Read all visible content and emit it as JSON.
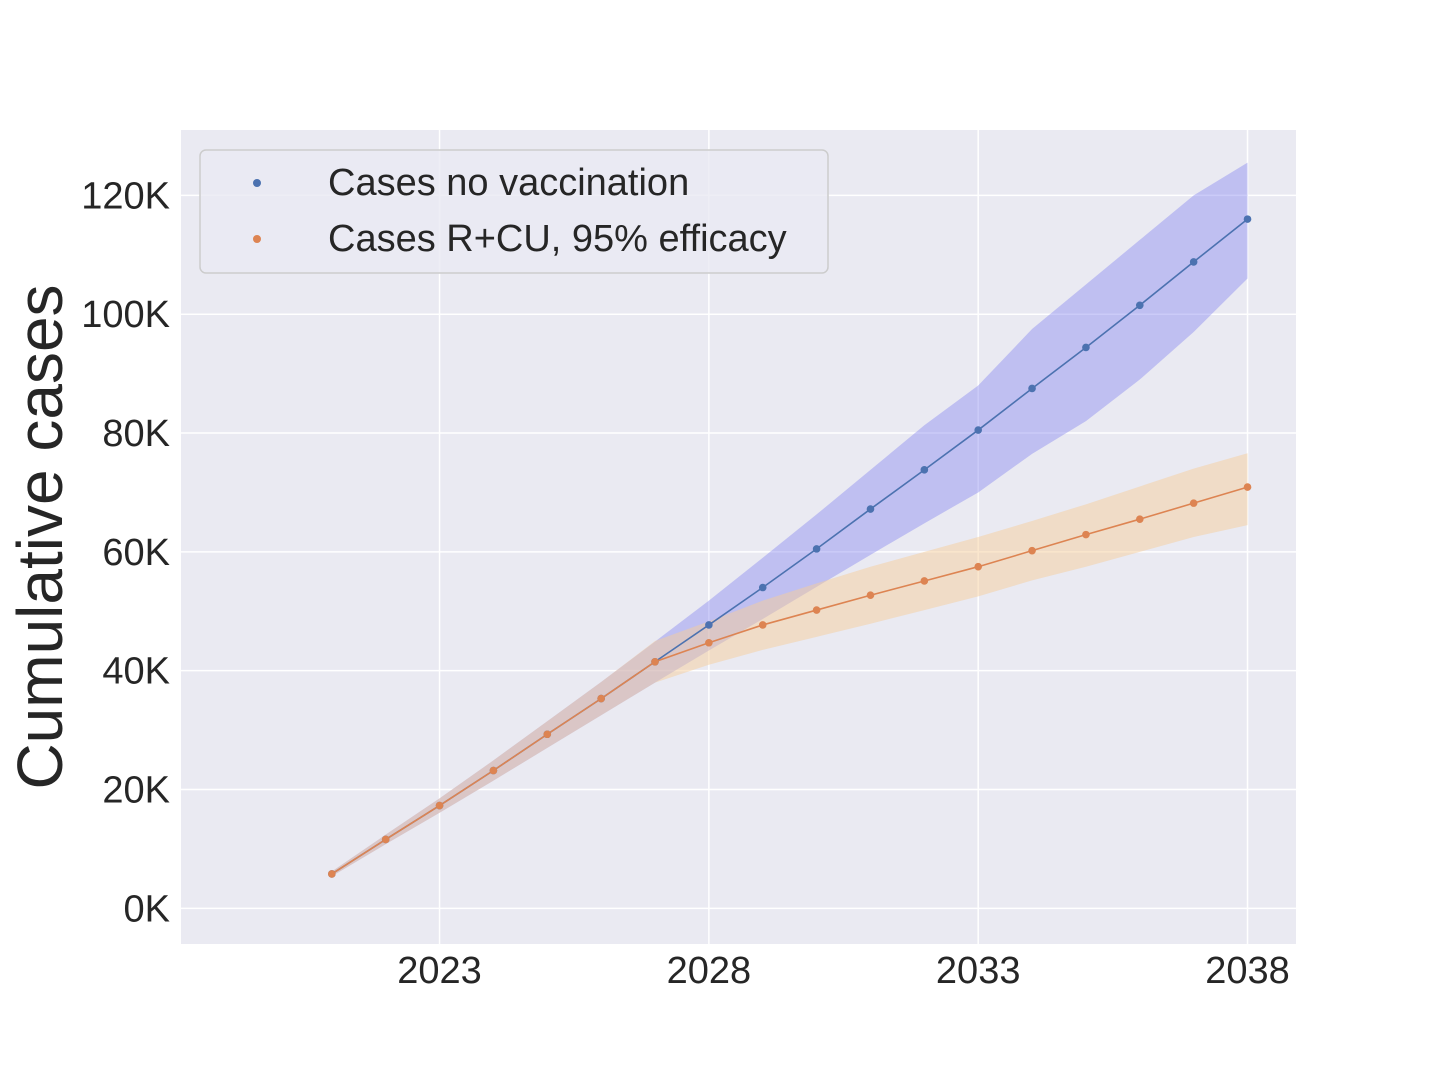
{
  "chart_data": {
    "type": "line",
    "title": "",
    "xlabel": "",
    "ylabel": "Cumulative cases",
    "x": [
      2021,
      2022,
      2023,
      2024,
      2025,
      2026,
      2027,
      2028,
      2029,
      2030,
      2031,
      2032,
      2033,
      2034,
      2035,
      2036,
      2037,
      2038
    ],
    "xlim": [
      2018.2,
      2038.9
    ],
    "ylim": [
      -6000,
      131000
    ],
    "xticks": [
      2023,
      2028,
      2033,
      2038
    ],
    "xtick_labels": [
      "2023",
      "2028",
      "2033",
      "2038"
    ],
    "yticks": [
      0,
      20000,
      40000,
      60000,
      80000,
      100000,
      120000
    ],
    "ytick_labels": [
      "0K",
      "20K",
      "40K",
      "60K",
      "80K",
      "100K",
      "120K"
    ],
    "grid": true,
    "legend_position": "upper-left",
    "colors": {
      "background": "#eaeaf2",
      "grid": "#ffffff",
      "series1_line": "#4c72b0",
      "series1_band": "#8c8cf0",
      "series2_line": "#dd8452",
      "series2_band": "#f5cd9c"
    },
    "series": [
      {
        "name": "Cases no vaccination",
        "values": [
          5800,
          11600,
          17300,
          23200,
          29300,
          35300,
          41500,
          47700,
          54000,
          60500,
          67200,
          73800,
          80500,
          87500,
          94400,
          101500,
          108800,
          116000
        ],
        "lower": [
          5400,
          10800,
          16100,
          21500,
          27000,
          32500,
          38000,
          43400,
          48700,
          54100,
          59500,
          64800,
          70000,
          76500,
          82000,
          89000,
          97000,
          106000
        ],
        "upper": [
          6200,
          12400,
          18500,
          24900,
          31500,
          38100,
          44900,
          51800,
          59000,
          66300,
          73800,
          81300,
          88000,
          97500,
          105000,
          112500,
          120000,
          125500
        ]
      },
      {
        "name": "Cases R+CU, 95% efficacy",
        "values": [
          5800,
          11600,
          17300,
          23200,
          29300,
          35300,
          41500,
          44700,
          47700,
          50200,
          52700,
          55100,
          57500,
          60200,
          62900,
          65500,
          68200,
          70900
        ],
        "lower": [
          5400,
          10800,
          16100,
          21500,
          27000,
          32500,
          38000,
          41000,
          43500,
          45700,
          47900,
          50200,
          52500,
          55200,
          57500,
          60000,
          62500,
          64500
        ],
        "upper": [
          6200,
          12400,
          18500,
          24900,
          31500,
          38100,
          45000,
          48300,
          51800,
          54700,
          57500,
          60000,
          62500,
          65200,
          68000,
          71000,
          74000,
          76600
        ]
      }
    ]
  }
}
